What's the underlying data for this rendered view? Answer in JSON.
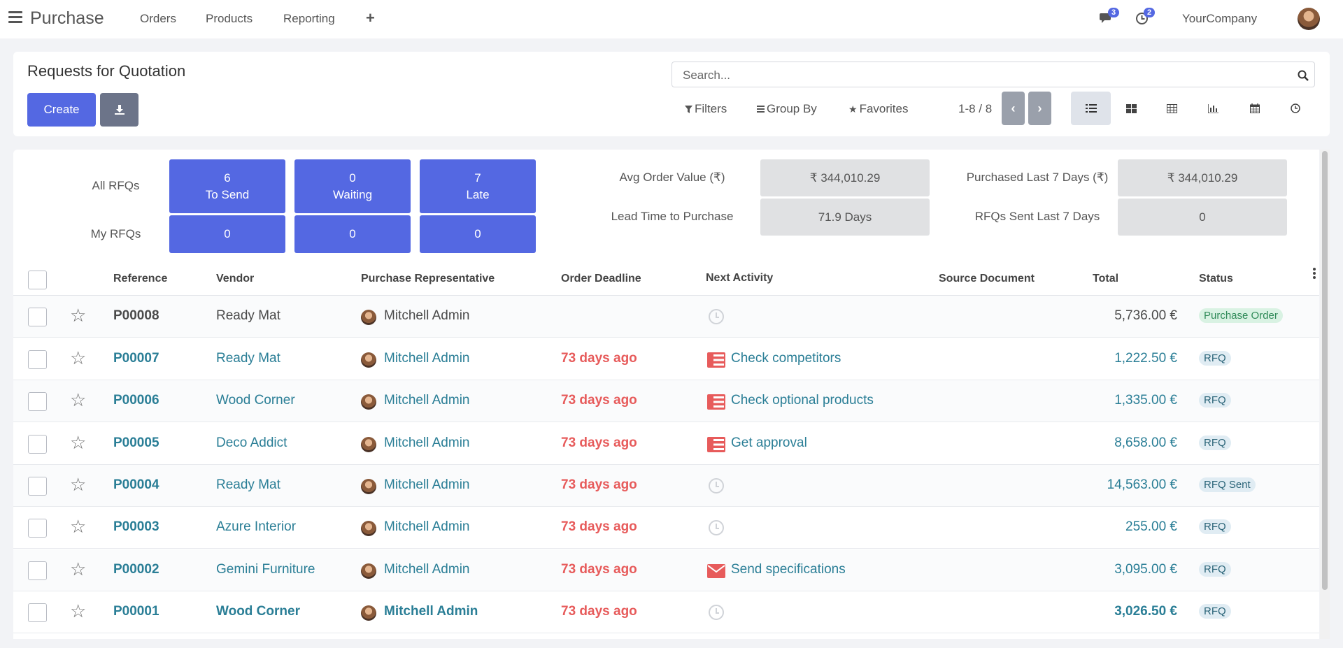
{
  "nav": {
    "app_name": "Purchase",
    "menu": [
      "Orders",
      "Products",
      "Reporting"
    ],
    "add_symbol": "+",
    "messages_count": "3",
    "activities_count": "2",
    "company": "YourCompany"
  },
  "control_panel": {
    "title": "Requests for Quotation",
    "create_label": "Create",
    "search_placeholder": "Search...",
    "filters_label": "Filters",
    "groupby_label": "Group By",
    "favorites_label": "Favorites",
    "pager": "1-8 / 8"
  },
  "dashboard": {
    "row_labels": [
      "All RFQs",
      "My RFQs"
    ],
    "tiles_all": [
      {
        "value": "6",
        "label": "To Send"
      },
      {
        "value": "0",
        "label": "Waiting"
      },
      {
        "value": "7",
        "label": "Late"
      }
    ],
    "tiles_my": [
      "0",
      "0",
      "0"
    ],
    "stats": [
      {
        "label": "Avg Order Value (₹)",
        "value": "₹ 344,010.29"
      },
      {
        "label": "Purchased Last 7 Days (₹)",
        "value": "₹ 344,010.29"
      },
      {
        "label": "Lead Time to Purchase",
        "value": "71.9  Days"
      },
      {
        "label": "RFQs Sent Last 7 Days",
        "value": "0"
      }
    ]
  },
  "table": {
    "headers": [
      "Reference",
      "Vendor",
      "Purchase Representative",
      "Order Deadline",
      "Next Activity",
      "Source Document",
      "Total",
      "Status"
    ],
    "rows": [
      {
        "ref": "P00008",
        "vendor": "Ready Mat",
        "rep": "Mitchell Admin",
        "deadline": "",
        "activity": "",
        "activity_icon": "clock-icon",
        "total": "5,736.00 €",
        "status": "Purchase Order"
      },
      {
        "ref": "P00007",
        "vendor": "Ready Mat",
        "rep": "Mitchell Admin",
        "deadline": "73 days ago",
        "activity": "Check competitors",
        "activity_icon": "tasks-icon",
        "total": "1,222.50 €",
        "status": "RFQ"
      },
      {
        "ref": "P00006",
        "vendor": "Wood Corner",
        "rep": "Mitchell Admin",
        "deadline": "73 days ago",
        "activity": "Check optional products",
        "activity_icon": "tasks-icon",
        "total": "1,335.00 €",
        "status": "RFQ"
      },
      {
        "ref": "P00005",
        "vendor": "Deco Addict",
        "rep": "Mitchell Admin",
        "deadline": "73 days ago",
        "activity": "Get approval",
        "activity_icon": "tasks-icon",
        "total": "8,658.00 €",
        "status": "RFQ"
      },
      {
        "ref": "P00004",
        "vendor": "Ready Mat",
        "rep": "Mitchell Admin",
        "deadline": "73 days ago",
        "activity": "",
        "activity_icon": "clock-icon",
        "total": "14,563.00 €",
        "status": "RFQ Sent"
      },
      {
        "ref": "P00003",
        "vendor": "Azure Interior",
        "rep": "Mitchell Admin",
        "deadline": "73 days ago",
        "activity": "",
        "activity_icon": "clock-icon",
        "total": "255.00 €",
        "status": "RFQ"
      },
      {
        "ref": "P00002",
        "vendor": "Gemini Furniture",
        "rep": "Mitchell Admin",
        "deadline": "73 days ago",
        "activity": "Send specifications",
        "activity_icon": "envelope-icon",
        "total": "3,095.00 €",
        "status": "RFQ"
      },
      {
        "ref": "P00001",
        "vendor": "Wood Corner",
        "rep": "Mitchell Admin",
        "deadline": "73 days ago",
        "activity": "",
        "activity_icon": "clock-icon",
        "total": "3,026.50 €",
        "status": "RFQ"
      }
    ]
  },
  "colors": {
    "primary": "#5468e2",
    "late": "#e75b5b",
    "link": "#2a7e96"
  }
}
